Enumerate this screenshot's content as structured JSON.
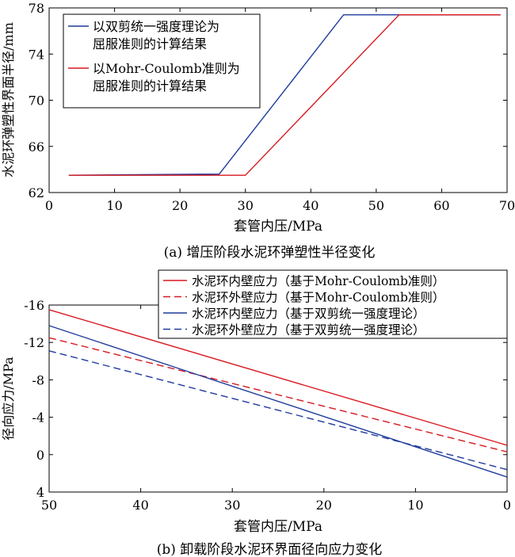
{
  "chart_data": [
    {
      "type": "line",
      "caption": "(a) 增压阶段水泥环弹塑性半径变化",
      "xlabel": "套管内压/MPa",
      "ylabel": "水泥环弹塑性界面半径/mm",
      "xlim": [
        0,
        70
      ],
      "ylim": [
        62,
        78
      ],
      "xticks": [
        0,
        10,
        20,
        30,
        40,
        50,
        60,
        70
      ],
      "yticks": [
        62,
        66,
        70,
        74,
        78
      ],
      "grid": false,
      "legend_position": "top-left",
      "series": [
        {
          "name": "以双剪统一强度理论为屈服准则的计算结果",
          "color": "#1f3c9c",
          "dash": "solid",
          "x": [
            3,
            26,
            45,
            69
          ],
          "y": [
            63.5,
            63.6,
            77.4,
            77.4
          ]
        },
        {
          "name": "以Mohr-Coulomb准则为屈服准则的计算结果",
          "color": "#d71920",
          "dash": "solid",
          "x": [
            3,
            30,
            53.5,
            69
          ],
          "y": [
            63.5,
            63.5,
            77.4,
            77.4
          ]
        }
      ],
      "legend_lines": [
        [
          "以双剪统一强度理论为",
          "屈服准则的计算结果"
        ],
        [
          "以Mohr-Coulomb准则为",
          "屈服准则的计算结果"
        ]
      ]
    },
    {
      "type": "line",
      "caption": "(b) 卸载阶段水泥环界面径向应力变化",
      "xlabel": "套管内压/MPa",
      "ylabel": "径向应力/MPa",
      "xlim": [
        50,
        0
      ],
      "ylim": [
        4,
        -16
      ],
      "xticks": [
        50,
        40,
        30,
        20,
        10,
        0
      ],
      "yticks": [
        -16,
        -12,
        -8,
        -4,
        0,
        4
      ],
      "grid": false,
      "legend_position": "top-right",
      "series": [
        {
          "name": "水泥环内壁应力（基于Mohr-Coulomb准则）",
          "color": "#d71920",
          "dash": "solid",
          "x": [
            50,
            0
          ],
          "y": [
            -15.5,
            -1.0
          ]
        },
        {
          "name": "水泥环外壁应力（基于Mohr-Coulomb准则）",
          "color": "#d71920",
          "dash": "dashed",
          "x": [
            50,
            0
          ],
          "y": [
            -12.5,
            -0.3
          ]
        },
        {
          "name": "水泥环内壁应力（基于双剪统一强度理论）",
          "color": "#1f3c9c",
          "dash": "solid",
          "x": [
            50,
            0
          ],
          "y": [
            -13.8,
            2.4
          ]
        },
        {
          "name": "水泥环外壁应力（基于双剪统一强度理论）",
          "color": "#1f3c9c",
          "dash": "dashed",
          "x": [
            50,
            0
          ],
          "y": [
            -11.1,
            1.6
          ]
        }
      ]
    }
  ]
}
